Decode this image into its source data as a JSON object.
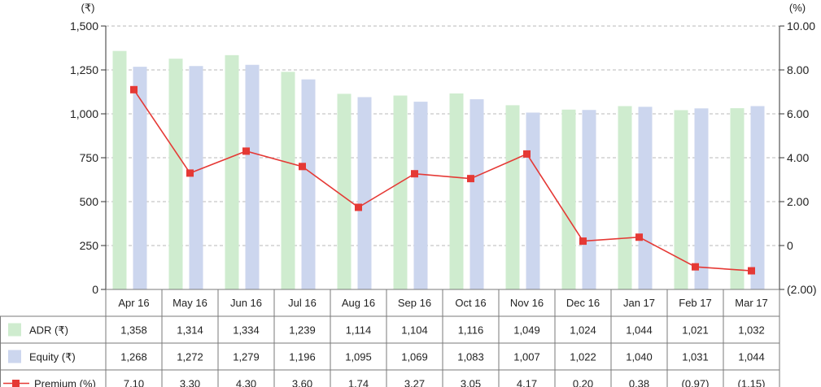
{
  "chart_data": {
    "type": "bar",
    "categories": [
      "Apr 16",
      "May 16",
      "Jun 16",
      "Jul 16",
      "Aug 16",
      "Sep 16",
      "Oct 16",
      "Nov 16",
      "Dec 16",
      "Jan 17",
      "Feb 17",
      "Mar 17"
    ],
    "left_axis": {
      "unit": "(₹)",
      "ylim": [
        0,
        1500
      ],
      "ticks": [
        0,
        250,
        500,
        750,
        1000,
        1250,
        1500
      ],
      "tick_labels": [
        "0",
        "250",
        "500",
        "750",
        "1,000",
        "1,250",
        "1,500"
      ]
    },
    "right_axis": {
      "unit": "(%)",
      "ylim": [
        -2,
        10
      ],
      "ticks": [
        -2,
        0,
        2,
        4,
        6,
        8,
        10
      ],
      "tick_labels": [
        "(2.00)",
        "0",
        "2.00",
        "4.00",
        "6.00",
        "8.00",
        "10.00"
      ]
    },
    "series": [
      {
        "name": "ADR (₹)",
        "type": "bar",
        "axis": "left",
        "color": "#cfeccf",
        "values": [
          1358,
          1314,
          1334,
          1239,
          1114,
          1104,
          1116,
          1049,
          1024,
          1044,
          1021,
          1032
        ],
        "labels": [
          "1,358",
          "1,314",
          "1,334",
          "1,239",
          "1,114",
          "1,104",
          "1,116",
          "1,049",
          "1,024",
          "1,044",
          "1,021",
          "1,032"
        ]
      },
      {
        "name": "Equity (₹)",
        "type": "bar",
        "axis": "left",
        "color": "#ccd6ee",
        "values": [
          1268,
          1272,
          1279,
          1196,
          1095,
          1069,
          1083,
          1007,
          1022,
          1040,
          1031,
          1044
        ],
        "labels": [
          "1,268",
          "1,272",
          "1,279",
          "1,196",
          "1,095",
          "1,069",
          "1,083",
          "1,007",
          "1,022",
          "1,040",
          "1,031",
          "1,044"
        ]
      },
      {
        "name": "Premium (%)",
        "type": "line",
        "axis": "right",
        "color": "#e53935",
        "values": [
          7.1,
          3.3,
          4.3,
          3.6,
          1.74,
          3.27,
          3.05,
          4.17,
          0.2,
          0.38,
          -0.97,
          -1.15
        ],
        "labels": [
          "7.10",
          "3.30",
          "4.30",
          "3.60",
          "1.74",
          "3.27",
          "3.05",
          "4.17",
          "0.20",
          "0.38",
          "(0.97)",
          "(1.15)"
        ]
      }
    ],
    "grid": true,
    "legend": "data-table"
  }
}
